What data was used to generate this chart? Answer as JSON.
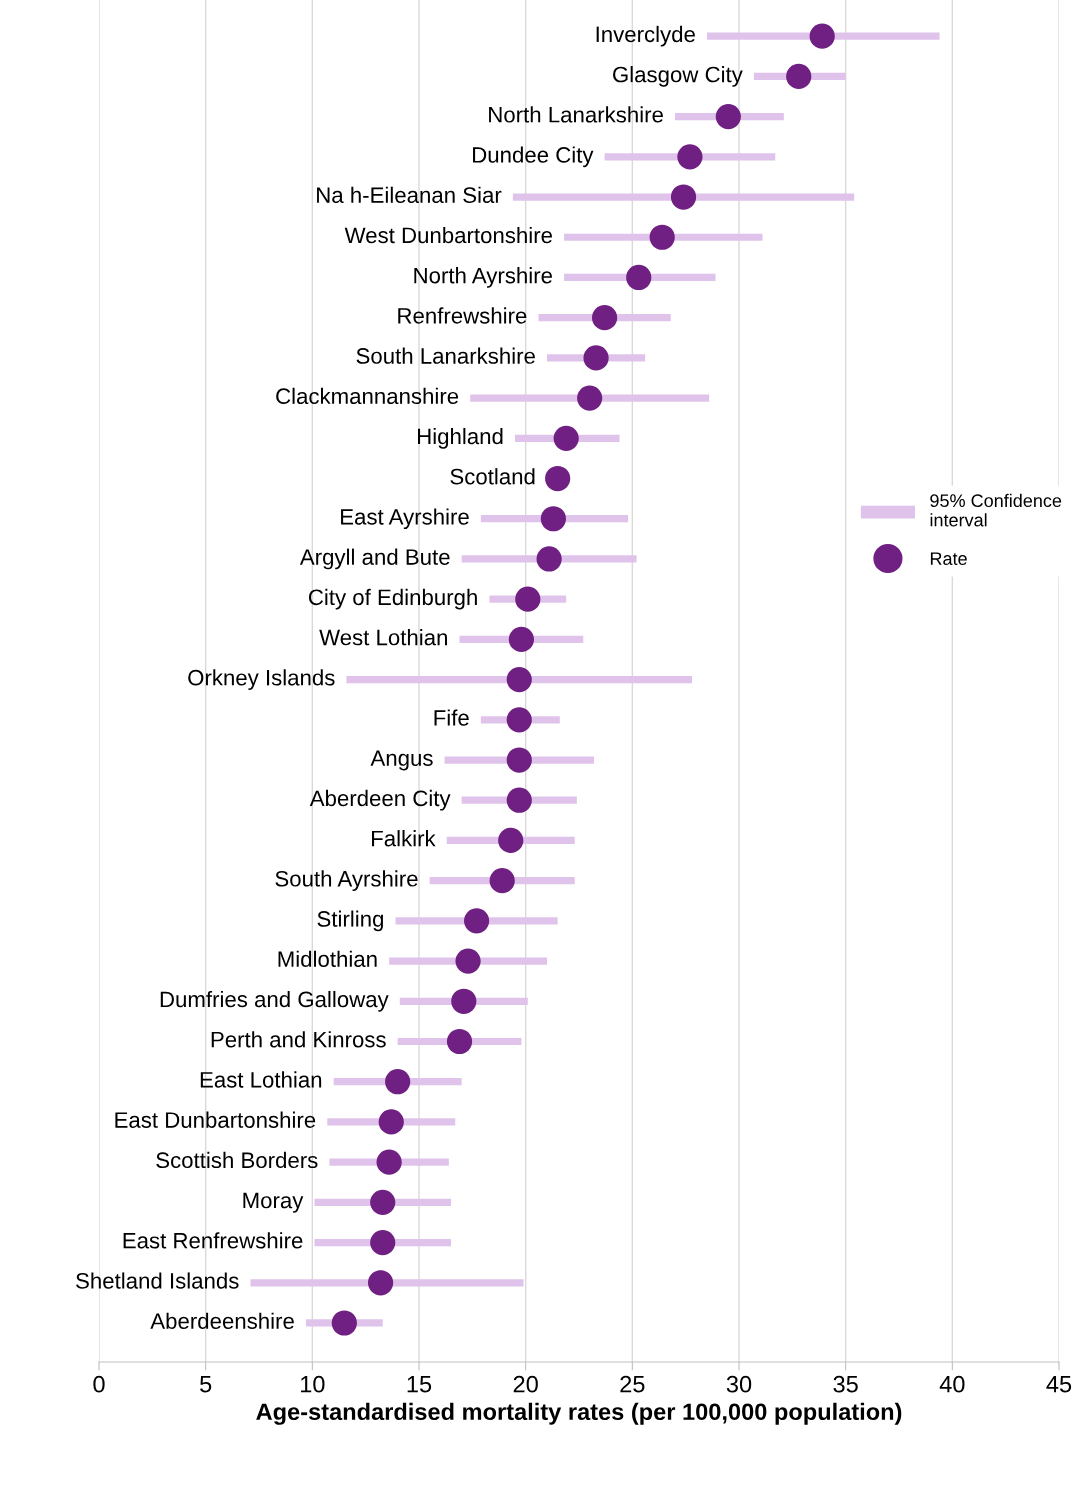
{
  "chart_data": {
    "type": "scatter",
    "orientation": "horizontal",
    "categories": [
      "Inverclyde",
      "Glasgow City",
      "North Lanarkshire",
      "Dundee City",
      "Na h-Eileanan Siar",
      "West Dunbartonshire",
      "North Ayrshire",
      "Renfrewshire",
      "South Lanarkshire",
      "Clackmannanshire",
      "Highland",
      "Scotland",
      "East Ayrshire",
      "Argyll and Bute",
      "City of Edinburgh",
      "West Lothian",
      "Orkney Islands",
      "Fife",
      "Angus",
      "Aberdeen City",
      "Falkirk",
      "South Ayrshire",
      "Stirling",
      "Midlothian",
      "Dumfries and Galloway",
      "Perth and Kinross",
      "East Lothian",
      "East Dunbartonshire",
      "Scottish Borders",
      "Moray",
      "East Renfrewshire",
      "Shetland Islands",
      "Aberdeenshire"
    ],
    "series": [
      {
        "name": "95% Confidence\ninterval",
        "type": "bar",
        "color": "#e0c3ea",
        "base": [
          28.5,
          30.7,
          27.0,
          23.7,
          19.4,
          21.8,
          21.8,
          20.6,
          21.0,
          17.4,
          19.5,
          null,
          17.9,
          17.0,
          18.3,
          16.9,
          11.6,
          17.9,
          16.2,
          17.0,
          16.3,
          15.5,
          13.9,
          13.6,
          14.1,
          14.0,
          11.0,
          10.7,
          10.8,
          10.1,
          10.1,
          7.1,
          9.7
        ],
        "values": [
          10.9,
          4.3,
          5.1,
          8.0,
          16.0,
          9.3,
          7.1,
          6.2,
          4.6,
          11.2,
          4.9,
          null,
          6.9,
          8.2,
          3.6,
          5.8,
          16.2,
          3.7,
          7.0,
          5.4,
          6.0,
          6.8,
          7.6,
          7.4,
          6.0,
          5.8,
          6.0,
          6.0,
          5.6,
          6.4,
          6.4,
          12.8,
          3.6
        ]
      },
      {
        "name": "Rate",
        "color": "#702082",
        "marker": "circle",
        "values": [
          33.9,
          32.8,
          29.5,
          27.7,
          27.4,
          26.4,
          25.3,
          23.7,
          23.3,
          23.0,
          21.9,
          21.5,
          21.3,
          21.1,
          20.1,
          19.8,
          19.7,
          19.7,
          19.7,
          19.7,
          19.3,
          18.9,
          17.7,
          17.3,
          17.1,
          16.9,
          14.0,
          13.7,
          13.6,
          13.3,
          13.3,
          13.2,
          11.5
        ]
      }
    ],
    "xlabel": "Age-standardised mortality rates (per 100,000 population)",
    "xlim": [
      0,
      45
    ],
    "xticks": [
      0,
      5,
      10,
      15,
      20,
      25,
      30,
      35,
      40,
      45
    ],
    "grid": "x",
    "legend": "right",
    "tick_labels": "x"
  }
}
